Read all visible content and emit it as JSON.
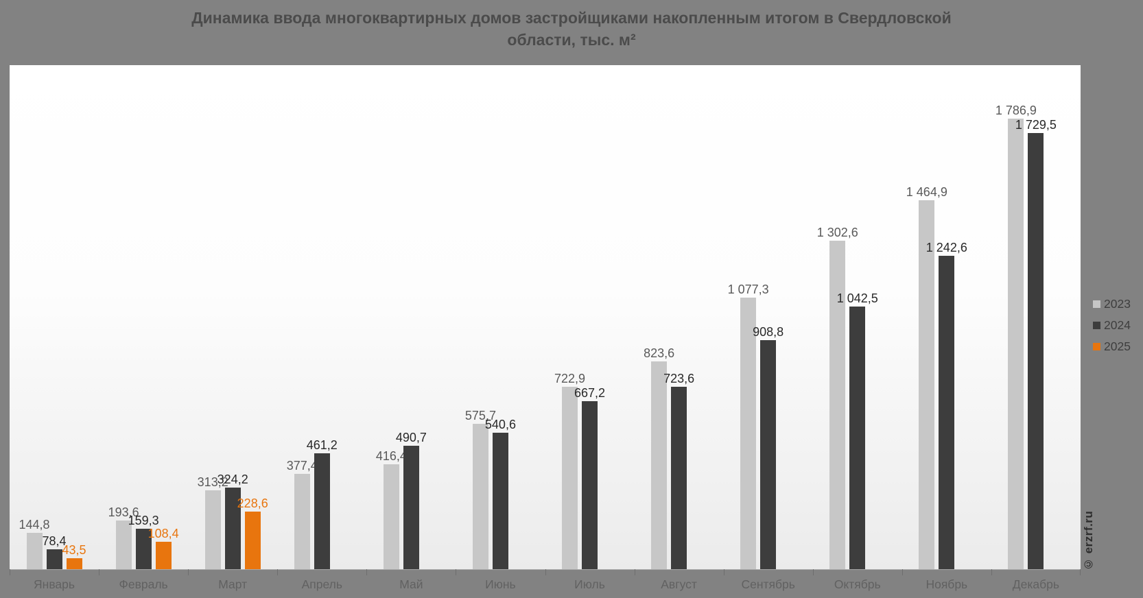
{
  "watermark": "© erzrf.ru",
  "chart_data": {
    "type": "bar",
    "title": "Динамика ввода многоквартирных домов застройщиками накопленным итогом в Свердловской области, тыс. м²",
    "categories": [
      "Январь",
      "Февраль",
      "Март",
      "Апрель",
      "Май",
      "Июнь",
      "Июль",
      "Август",
      "Сентябрь",
      "Октябрь",
      "Ноябрь",
      "Декабрь"
    ],
    "series": [
      {
        "name": "2023",
        "color": "#c7c7c7",
        "label_color": "#595959",
        "values": [
          144.8,
          193.6,
          313.2,
          377.4,
          416.4,
          575.7,
          722.9,
          823.6,
          1077.3,
          1302.6,
          1464.9,
          1786.9
        ]
      },
      {
        "name": "2024",
        "color": "#3d3d3d",
        "label_color": "#282828",
        "values": [
          78.4,
          159.3,
          324.2,
          461.2,
          490.7,
          540.6,
          667.2,
          723.6,
          908.8,
          1042.5,
          1242.6,
          1729.5
        ]
      },
      {
        "name": "2025",
        "color": "#e8750e",
        "label_color": "#e8750e",
        "values": [
          43.5,
          108.4,
          228.6,
          null,
          null,
          null,
          null,
          null,
          null,
          null,
          null,
          null
        ]
      }
    ],
    "ylim": [
      0,
      2000
    ],
    "grid": false,
    "legend_position": "right",
    "value_format": "ru-RU, one decimal, comma decimal separator, non-breaking-space thousands separator"
  }
}
